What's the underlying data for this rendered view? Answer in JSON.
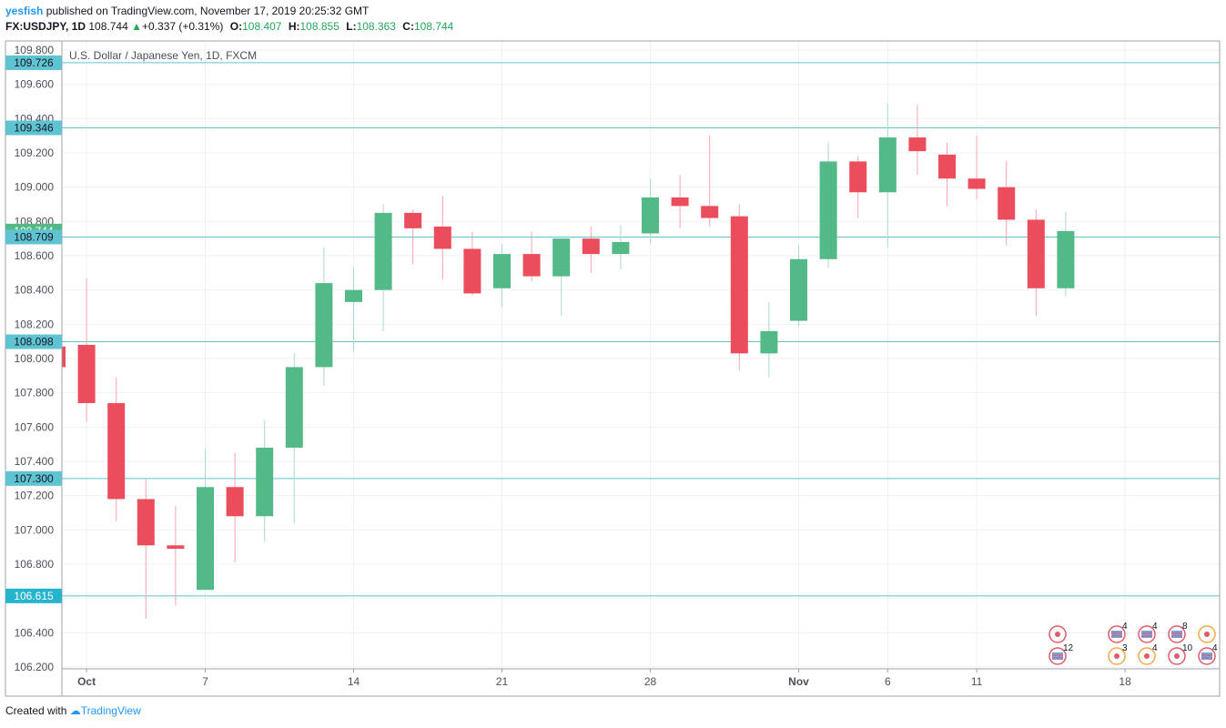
{
  "header": {
    "user": "yesfish",
    "published": "published on TradingView.com, November 17, 2019 20:25:32 GMT",
    "symbol": "FX:USDJPY, 1D",
    "last": "108.744",
    "change": "+0.337 (+0.31%)",
    "open_label": "O:",
    "open": "108.407",
    "high_label": "H:",
    "high": "108.855",
    "low_label": "L:",
    "low": "108.363",
    "close_label": "C:",
    "close": "108.744"
  },
  "footer": {
    "prefix": "Created with",
    "brand": "TradingView"
  },
  "colors": {
    "up": "#53b987",
    "down": "#eb4d5c",
    "hline": "#5fc3d1",
    "grid": "#eef2f6",
    "label_bg": "#5fc3d1",
    "last_bg": "#53b987"
  },
  "chart_data": {
    "type": "candlestick",
    "title": "U.S. Dollar / Japanese Yen, 1D, FXCM",
    "ylim": [
      106.2,
      109.8
    ],
    "yticks": [
      "106.200",
      "106.400",
      "106.600",
      "106.800",
      "107.000",
      "107.200",
      "107.400",
      "107.600",
      "107.800",
      "108.000",
      "108.200",
      "108.400",
      "108.600",
      "108.800",
      "109.000",
      "109.200",
      "109.400",
      "109.600",
      "109.800"
    ],
    "xticks": [
      "Oct",
      "7",
      "14",
      "21",
      "28",
      "Nov",
      "6",
      "11",
      "18"
    ],
    "xtick_positions": [
      1,
      5,
      10,
      15,
      20,
      25,
      28,
      31,
      36
    ],
    "candles": [
      {
        "o": 108.07,
        "h": 108.08,
        "l": 107.93,
        "c": 107.95
      },
      {
        "o": 108.08,
        "h": 108.47,
        "l": 107.63,
        "c": 107.74
      },
      {
        "o": 107.74,
        "h": 107.89,
        "l": 107.05,
        "c": 107.18
      },
      {
        "o": 107.18,
        "h": 107.3,
        "l": 106.48,
        "c": 106.91
      },
      {
        "o": 106.91,
        "h": 107.14,
        "l": 106.56,
        "c": 106.89
      },
      {
        "o": 106.65,
        "h": 107.47,
        "l": 106.65,
        "c": 107.25
      },
      {
        "o": 107.25,
        "h": 107.45,
        "l": 106.81,
        "c": 107.08
      },
      {
        "o": 107.08,
        "h": 107.64,
        "l": 106.93,
        "c": 107.48
      },
      {
        "o": 107.48,
        "h": 108.03,
        "l": 107.04,
        "c": 107.95
      },
      {
        "o": 107.95,
        "h": 108.65,
        "l": 107.84,
        "c": 108.44
      },
      {
        "o": 108.33,
        "h": 108.53,
        "l": 108.04,
        "c": 108.4
      },
      {
        "o": 108.4,
        "h": 108.9,
        "l": 108.16,
        "c": 108.85
      },
      {
        "o": 108.85,
        "h": 108.87,
        "l": 108.55,
        "c": 108.76
      },
      {
        "o": 108.77,
        "h": 108.95,
        "l": 108.46,
        "c": 108.64
      },
      {
        "o": 108.64,
        "h": 108.74,
        "l": 108.37,
        "c": 108.38
      },
      {
        "o": 108.41,
        "h": 108.67,
        "l": 108.3,
        "c": 108.61
      },
      {
        "o": 108.61,
        "h": 108.74,
        "l": 108.45,
        "c": 108.48
      },
      {
        "o": 108.48,
        "h": 108.7,
        "l": 108.25,
        "c": 108.7
      },
      {
        "o": 108.7,
        "h": 108.77,
        "l": 108.5,
        "c": 108.61
      },
      {
        "o": 108.61,
        "h": 108.78,
        "l": 108.52,
        "c": 108.68
      },
      {
        "o": 108.73,
        "h": 109.05,
        "l": 108.67,
        "c": 108.94
      },
      {
        "o": 108.94,
        "h": 109.07,
        "l": 108.76,
        "c": 108.89
      },
      {
        "o": 108.89,
        "h": 109.3,
        "l": 108.77,
        "c": 108.82
      },
      {
        "o": 108.83,
        "h": 108.9,
        "l": 107.93,
        "c": 108.03
      },
      {
        "o": 108.03,
        "h": 108.33,
        "l": 107.89,
        "c": 108.16
      },
      {
        "o": 108.22,
        "h": 108.66,
        "l": 108.19,
        "c": 108.58
      },
      {
        "o": 108.58,
        "h": 109.26,
        "l": 108.53,
        "c": 109.15
      },
      {
        "o": 109.15,
        "h": 109.18,
        "l": 108.82,
        "c": 108.97
      },
      {
        "o": 108.97,
        "h": 109.49,
        "l": 108.65,
        "c": 109.29
      },
      {
        "o": 109.29,
        "h": 109.48,
        "l": 109.07,
        "c": 109.21
      },
      {
        "o": 109.19,
        "h": 109.26,
        "l": 108.89,
        "c": 109.05
      },
      {
        "o": 109.05,
        "h": 109.3,
        "l": 108.93,
        "c": 108.99
      },
      {
        "o": 109.0,
        "h": 109.15,
        "l": 108.66,
        "c": 108.81
      },
      {
        "o": 108.81,
        "h": 108.87,
        "l": 108.25,
        "c": 108.41
      },
      {
        "o": 108.41,
        "h": 108.855,
        "l": 108.363,
        "c": 108.744
      }
    ],
    "hlines": [
      109.726,
      109.346,
      108.709,
      108.098,
      107.3,
      106.615
    ],
    "price_labels": [
      {
        "value": 109.726,
        "text": "109.726",
        "kind": "line"
      },
      {
        "value": 109.346,
        "text": "109.346",
        "kind": "line"
      },
      {
        "value": 108.744,
        "text": "108.744",
        "kind": "last"
      },
      {
        "value": 108.709,
        "text": "108.709",
        "kind": "line"
      },
      {
        "value": 108.098,
        "text": "108.098",
        "kind": "line"
      },
      {
        "value": 107.3,
        "text": "107.300",
        "kind": "line"
      },
      {
        "value": 106.615,
        "text": "106.615",
        "kind": "line"
      }
    ],
    "events": [
      {
        "type": "calendar",
        "slot": 0,
        "row": 0,
        "count": ""
      },
      {
        "type": "flag",
        "slot": 0,
        "row": 1,
        "count": "12"
      },
      {
        "type": "flag",
        "slot": 2,
        "row": 0,
        "count": "4"
      },
      {
        "type": "calendar-orange",
        "slot": 2,
        "row": 1,
        "count": "3"
      },
      {
        "type": "flag",
        "slot": 3,
        "row": 0,
        "count": "4"
      },
      {
        "type": "calendar-orange",
        "slot": 3,
        "row": 1,
        "count": "4"
      },
      {
        "type": "flag",
        "slot": 4,
        "row": 0,
        "count": "8"
      },
      {
        "type": "calendar",
        "slot": 4,
        "row": 1,
        "count": "10"
      },
      {
        "type": "calendar-orange",
        "slot": 5,
        "row": 0,
        "count": ""
      },
      {
        "type": "flag",
        "slot": 5,
        "row": 1,
        "count": "4"
      }
    ]
  }
}
